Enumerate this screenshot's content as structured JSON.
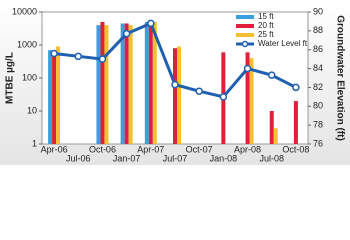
{
  "chart_data": {
    "type": "bar-line",
    "categories": [
      "Apr-06",
      "Jul-06",
      "Oct-06",
      "Jan-07",
      "Apr-07",
      "Jul-07",
      "Oct-07",
      "Jan-08",
      "Apr-08",
      "Jul-08",
      "Oct-08"
    ],
    "y_label": "MTBE µg/L",
    "y2_label": "Groundwater Elevation (ft)",
    "log_scale": true,
    "ylim": [
      1,
      10000
    ],
    "yticks": [
      1,
      10,
      100,
      1000,
      10000
    ],
    "y2lim": [
      76,
      90
    ],
    "y2ticks": [
      76,
      78,
      80,
      82,
      84,
      86,
      88,
      90
    ],
    "legend": "top-right",
    "series": [
      {
        "name": "15 ft",
        "color": "#3a9fe0",
        "values": [
          700,
          null,
          4000,
          4500,
          5000,
          null,
          null,
          null,
          null,
          null,
          null
        ]
      },
      {
        "name": "20 ft",
        "color": "#e0203a",
        "values": [
          600,
          null,
          5000,
          4500,
          5000,
          800,
          null,
          600,
          600,
          10,
          20
        ]
      },
      {
        "name": "25 ft",
        "color": "#f4c030",
        "values": [
          900,
          null,
          4000,
          4000,
          5000,
          900,
          null,
          null,
          400,
          3,
          null
        ]
      },
      {
        "name": "Water Level ft",
        "color": "#1f5fb0",
        "axis": "y2",
        "type": "line",
        "values": [
          85.6,
          85.3,
          85,
          87.7,
          88.8,
          82.3,
          81.6,
          81,
          84,
          83.3,
          82
        ]
      }
    ]
  }
}
